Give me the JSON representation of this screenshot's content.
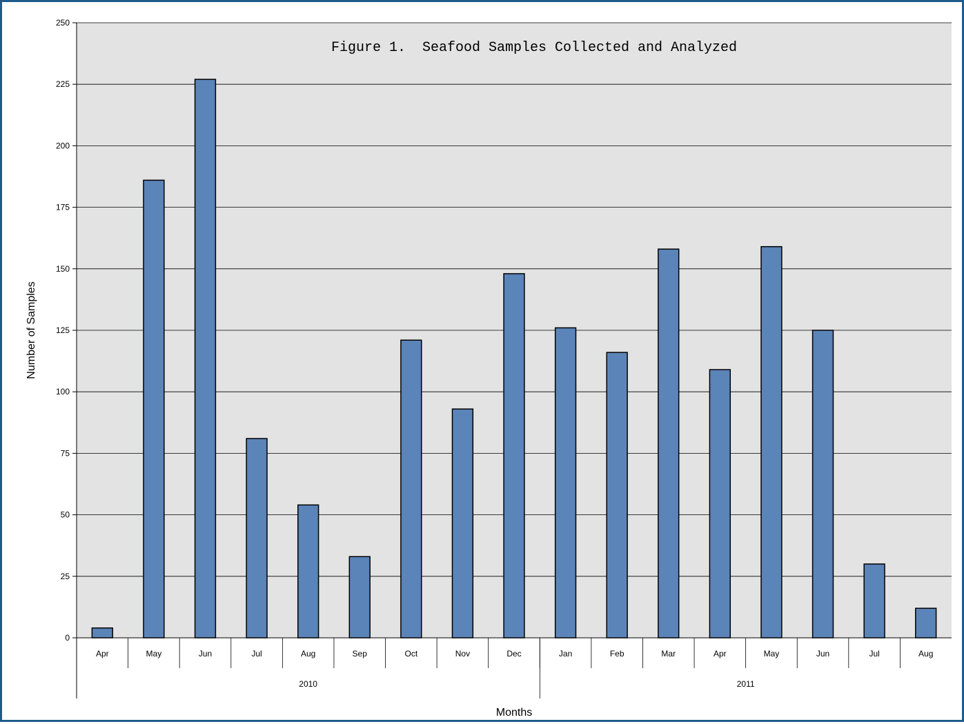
{
  "chart_data": {
    "type": "bar",
    "title": "Figure 1.  Seafood Samples Collected and Analyzed",
    "xlabel": "Months",
    "ylabel": "Number of Samples",
    "ylim": [
      0,
      250
    ],
    "yticks": [
      0,
      25,
      50,
      75,
      100,
      125,
      150,
      175,
      200,
      225,
      250
    ],
    "grid": true,
    "categories": [
      "Apr",
      "May",
      "Jun",
      "Jul",
      "Aug",
      "Sep",
      "Oct",
      "Nov",
      "Dec",
      "Jan",
      "Feb",
      "Mar",
      "Apr",
      "May",
      "Jun",
      "Jul",
      "Aug"
    ],
    "values": [
      4,
      186,
      227,
      81,
      54,
      33,
      121,
      93,
      148,
      126,
      116,
      158,
      109,
      159,
      125,
      30,
      12
    ],
    "groups": [
      {
        "label": "2010",
        "count": 9
      },
      {
        "label": "2011",
        "count": 8
      }
    ],
    "colors": {
      "bar": "#5b84b8",
      "bar_stroke": "#000000",
      "plot_background": "#e3e3e3",
      "frame_border": "#1f5a8a"
    }
  }
}
